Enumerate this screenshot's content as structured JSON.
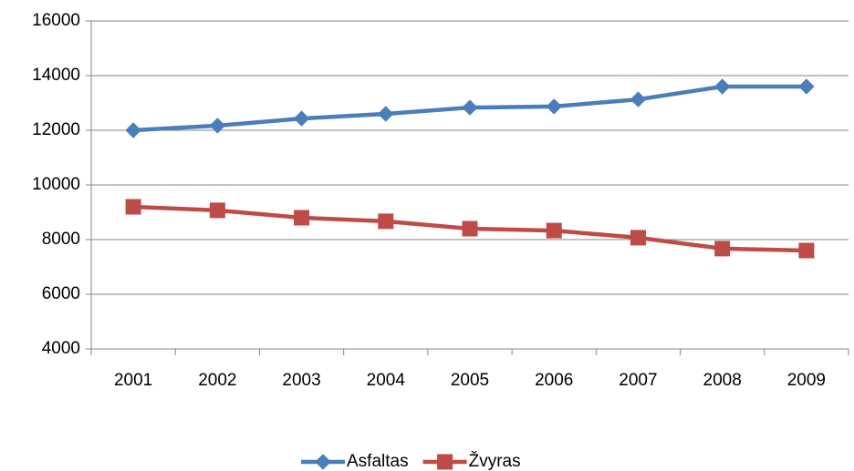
{
  "chart_data": {
    "type": "line",
    "categories": [
      "2001",
      "2002",
      "2003",
      "2004",
      "2005",
      "2006",
      "2007",
      "2008",
      "2009"
    ],
    "series": [
      {
        "name": "Asfaltas",
        "color": "#4a7ebb",
        "marker": "diamond",
        "values": [
          12000,
          12170,
          12430,
          12600,
          12830,
          12870,
          13130,
          13600,
          13600
        ]
      },
      {
        "name": "Žvyras",
        "color": "#be4b48",
        "marker": "square",
        "values": [
          9200,
          9070,
          8800,
          8670,
          8400,
          8330,
          8070,
          7670,
          7600
        ]
      }
    ],
    "ylim": [
      4000,
      16000
    ],
    "yticks": [
      4000,
      6000,
      8000,
      10000,
      12000,
      14000,
      16000
    ],
    "grid": true,
    "legend": "bottom"
  }
}
